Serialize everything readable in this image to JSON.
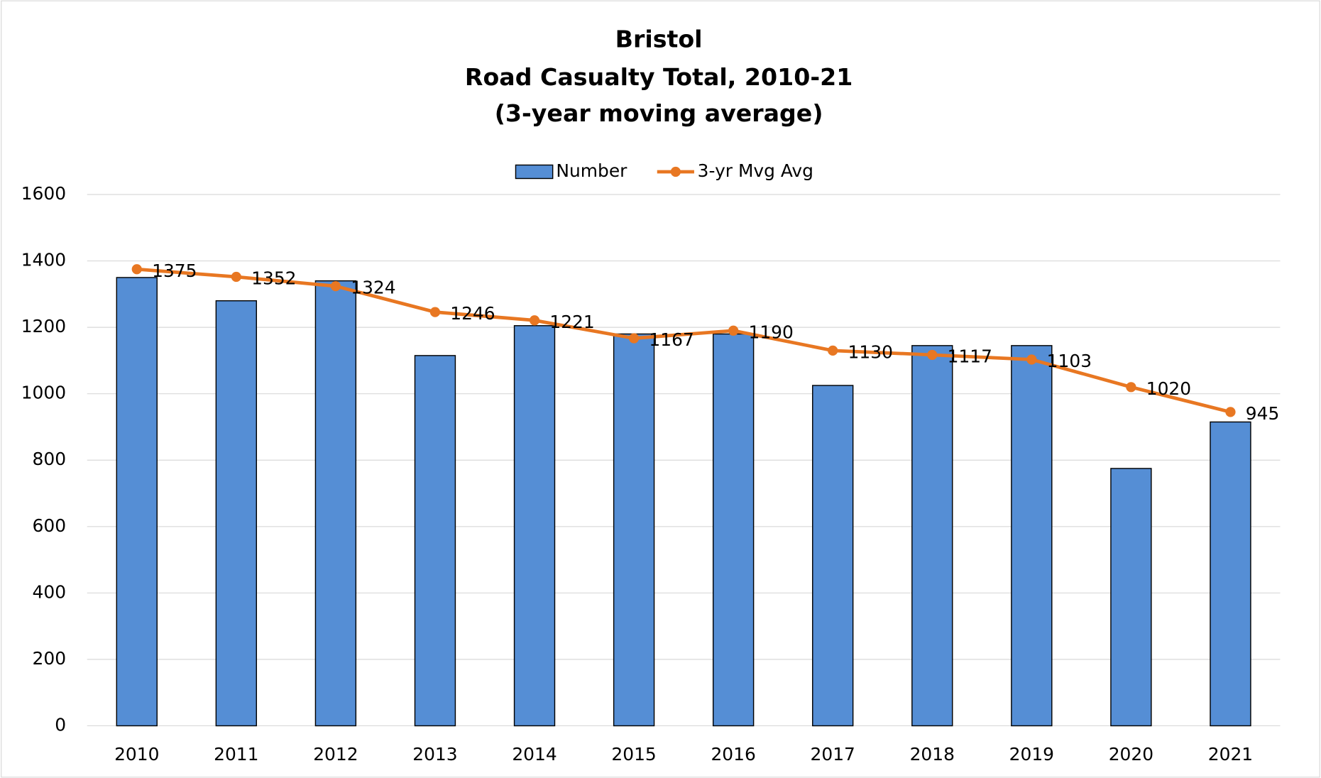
{
  "chart_data": {
    "type": "bar_line",
    "title": [
      "Bristol",
      "Road Casualty Total, 2010-21",
      "(3-year moving average)"
    ],
    "categories": [
      "2010",
      "2011",
      "2012",
      "2013",
      "2014",
      "2015",
      "2016",
      "2017",
      "2018",
      "2019",
      "2020",
      "2021"
    ],
    "series": [
      {
        "name": "Number",
        "type": "bar",
        "color": "#558ed5",
        "values": [
          1350,
          1280,
          1340,
          1115,
          1205,
          1180,
          1180,
          1025,
          1145,
          1145,
          775,
          915
        ]
      },
      {
        "name": "3-yr Mvg Avg",
        "type": "line",
        "color": "#e87722",
        "values": [
          1375,
          1352,
          1324,
          1246,
          1221,
          1167,
          1190,
          1130,
          1117,
          1103,
          1020,
          945
        ]
      }
    ],
    "ylim": [
      0,
      1600
    ],
    "yticks": [
      0,
      200,
      400,
      600,
      800,
      1000,
      1200,
      1400,
      1600
    ],
    "grid": true,
    "legend": "top"
  }
}
